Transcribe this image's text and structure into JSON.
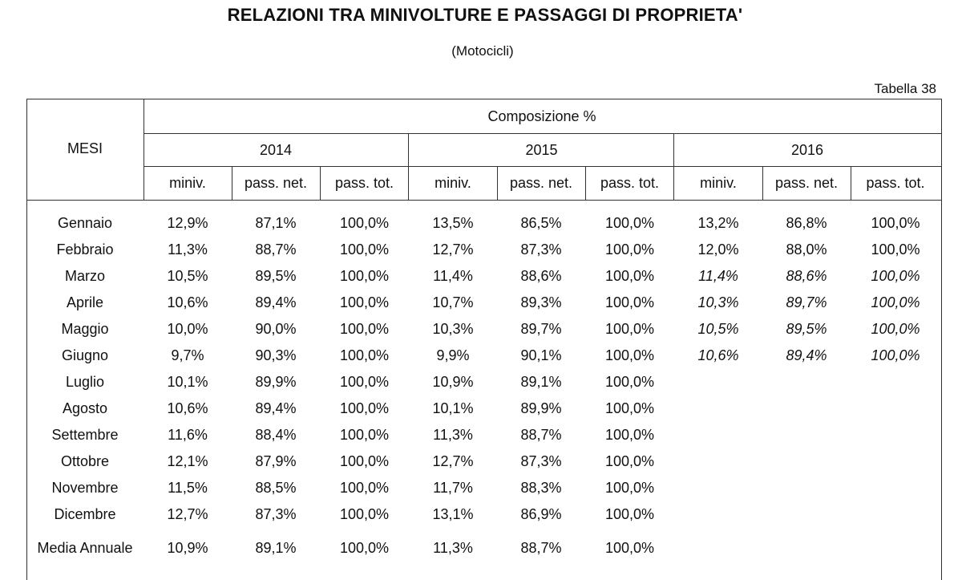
{
  "title": "RELAZIONI TRA MINIVOLTURE E PASSAGGI DI PROPRIETA'",
  "subtitle": "(Motocicli)",
  "table_label": "Tabella 38",
  "header": {
    "row_label": "MESI",
    "group_label": "Composizione %",
    "years": [
      "2014",
      "2015",
      "2016"
    ],
    "columns": [
      "miniv.",
      "pass. net.",
      "pass. tot."
    ]
  },
  "rows": [
    {
      "month": "Gennaio",
      "values": [
        "12,9%",
        "87,1%",
        "100,0%",
        "13,5%",
        "86,5%",
        "100,0%",
        "13,2%",
        "86,8%",
        "100,0%"
      ],
      "italic_2016": false
    },
    {
      "month": "Febbraio",
      "values": [
        "11,3%",
        "88,7%",
        "100,0%",
        "12,7%",
        "87,3%",
        "100,0%",
        "12,0%",
        "88,0%",
        "100,0%"
      ],
      "italic_2016": false
    },
    {
      "month": "Marzo",
      "values": [
        "10,5%",
        "89,5%",
        "100,0%",
        "11,4%",
        "88,6%",
        "100,0%",
        "11,4%",
        "88,6%",
        "100,0%"
      ],
      "italic_2016": true
    },
    {
      "month": "Aprile",
      "values": [
        "10,6%",
        "89,4%",
        "100,0%",
        "10,7%",
        "89,3%",
        "100,0%",
        "10,3%",
        "89,7%",
        "100,0%"
      ],
      "italic_2016": true
    },
    {
      "month": "Maggio",
      "values": [
        "10,0%",
        "90,0%",
        "100,0%",
        "10,3%",
        "89,7%",
        "100,0%",
        "10,5%",
        "89,5%",
        "100,0%"
      ],
      "italic_2016": true
    },
    {
      "month": "Giugno",
      "values": [
        "9,7%",
        "90,3%",
        "100,0%",
        "9,9%",
        "90,1%",
        "100,0%",
        "10,6%",
        "89,4%",
        "100,0%"
      ],
      "italic_2016": true
    },
    {
      "month": "Luglio",
      "values": [
        "10,1%",
        "89,9%",
        "100,0%",
        "10,9%",
        "89,1%",
        "100,0%",
        "",
        "",
        ""
      ],
      "italic_2016": false
    },
    {
      "month": "Agosto",
      "values": [
        "10,6%",
        "89,4%",
        "100,0%",
        "10,1%",
        "89,9%",
        "100,0%",
        "",
        "",
        ""
      ],
      "italic_2016": false
    },
    {
      "month": "Settembre",
      "values": [
        "11,6%",
        "88,4%",
        "100,0%",
        "11,3%",
        "88,7%",
        "100,0%",
        "",
        "",
        ""
      ],
      "italic_2016": false
    },
    {
      "month": "Ottobre",
      "values": [
        "12,1%",
        "87,9%",
        "100,0%",
        "12,7%",
        "87,3%",
        "100,0%",
        "",
        "",
        ""
      ],
      "italic_2016": false
    },
    {
      "month": "Novembre",
      "values": [
        "11,5%",
        "88,5%",
        "100,0%",
        "11,7%",
        "88,3%",
        "100,0%",
        "",
        "",
        ""
      ],
      "italic_2016": false
    },
    {
      "month": "Dicembre",
      "values": [
        "12,7%",
        "87,3%",
        "100,0%",
        "13,1%",
        "86,9%",
        "100,0%",
        "",
        "",
        ""
      ],
      "italic_2016": false
    },
    {
      "month": "Media Annuale",
      "values": [
        "10,9%",
        "89,1%",
        "100,0%",
        "11,3%",
        "88,7%",
        "100,0%",
        "",
        "",
        ""
      ],
      "italic_2016": false
    }
  ]
}
